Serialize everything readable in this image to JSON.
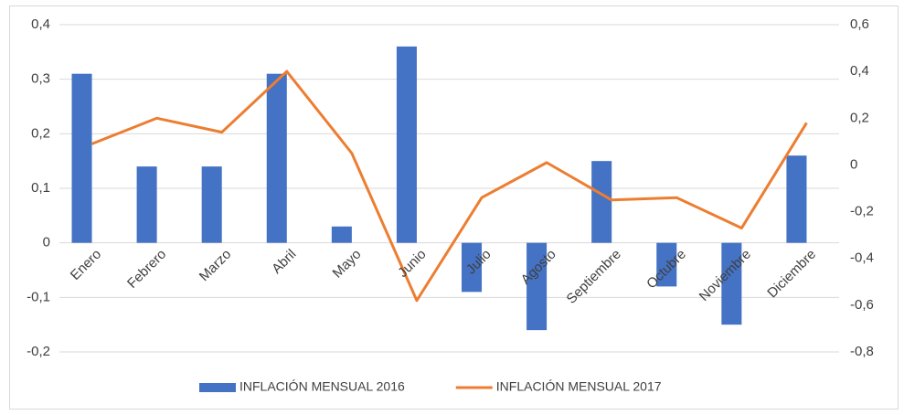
{
  "chart_data": {
    "type": "bar-line",
    "categories": [
      "Enero",
      "Febrero",
      "Marzo",
      "Abril",
      "Mayo",
      "Junio",
      "Julio",
      "Agosto",
      "Septiembre",
      "Octubre",
      "Noviembre",
      "Diciembre"
    ],
    "series": [
      {
        "name": "INFLACIÓN MENSUAL 2016",
        "color": "#4472c4",
        "type": "bar",
        "values": [
          0.31,
          0.14,
          0.14,
          0.31,
          0.03,
          0.36,
          -0.09,
          -0.16,
          0.15,
          -0.08,
          -0.15,
          0.16
        ]
      },
      {
        "name": "INFLACIÓN MENSUAL 2017",
        "color": "#ed7d31",
        "type": "line",
        "axis": "y2",
        "values": [
          0.09,
          0.2,
          0.14,
          0.4,
          0.05,
          -0.58,
          -0.14,
          0.01,
          -0.15,
          -0.14,
          -0.27,
          0.18
        ]
      }
    ],
    "ylim": [
      -0.2,
      0.4
    ],
    "yticks": [
      {
        "value": -0.2,
        "label": "-0,2"
      },
      {
        "value": -0.1,
        "label": "-0,1"
      },
      0,
      {
        "value": 0.1,
        "label": "0,1"
      },
      {
        "value": 0.2,
        "label": "0,2"
      },
      {
        "value": 0.3,
        "label": "0,3"
      },
      {
        "value": 0.4,
        "label": "0,4"
      }
    ],
    "y2lim": [
      -0.8,
      0.6
    ],
    "y2ticks": [
      {
        "value": -0.8,
        "label": "-0,8"
      },
      {
        "value": -0.6,
        "label": "-0,6"
      },
      {
        "value": -0.4,
        "label": "-0,4"
      },
      {
        "value": -0.2,
        "label": "-0,2"
      },
      0,
      {
        "value": 0.2,
        "label": "0,2"
      },
      {
        "value": 0.4,
        "label": "0,4"
      },
      {
        "value": 0.6,
        "label": "0,6"
      }
    ],
    "grid": true
  }
}
